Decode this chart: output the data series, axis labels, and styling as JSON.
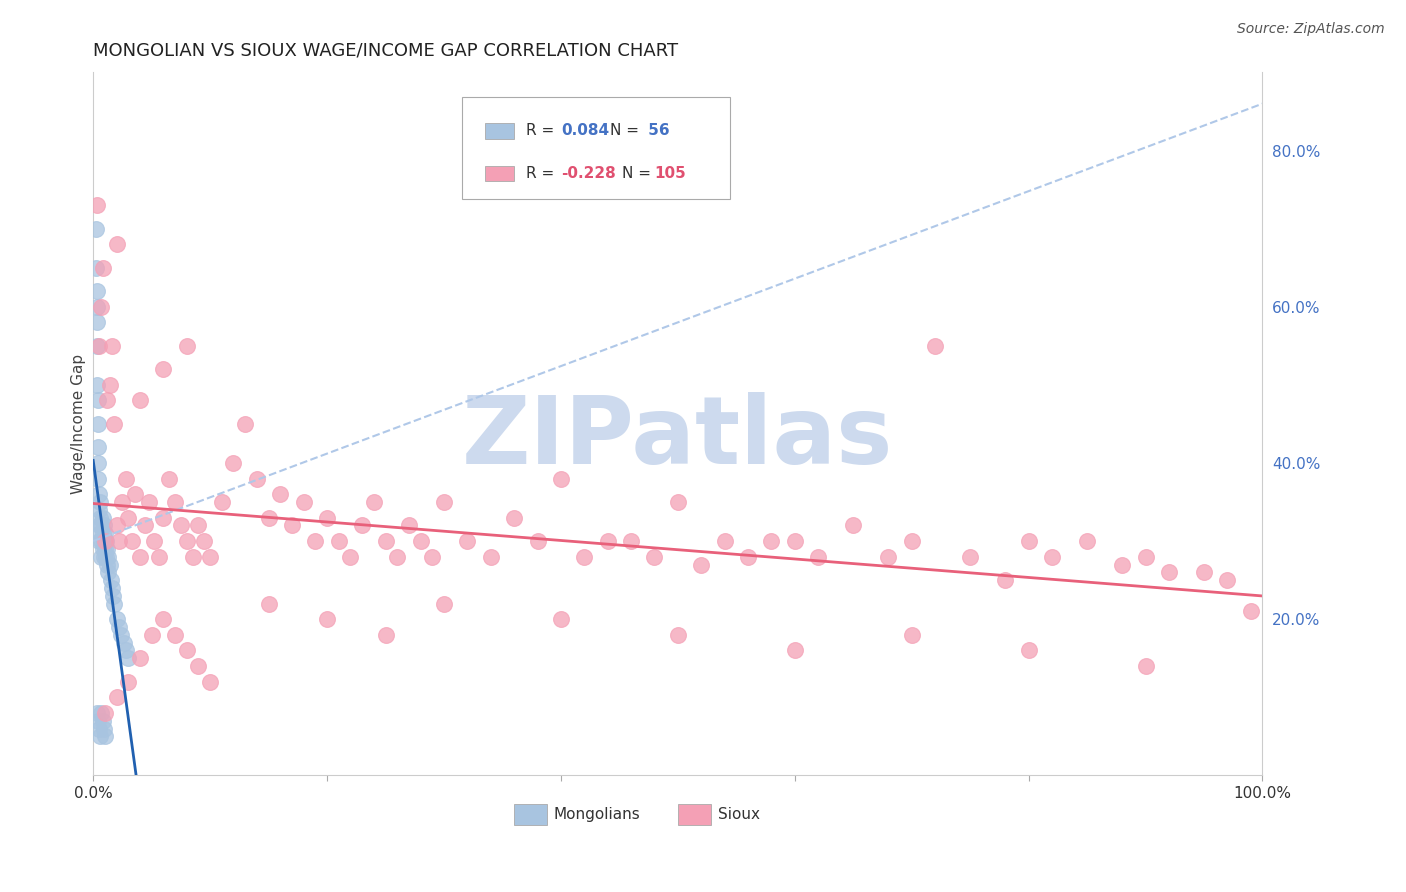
{
  "title": "MONGOLIAN VS SIOUX WAGE/INCOME GAP CORRELATION CHART",
  "source": "Source: ZipAtlas.com",
  "ylabel": "Wage/Income Gap",
  "xlim": [
    0.0,
    1.0
  ],
  "ylim": [
    0.0,
    0.9
  ],
  "mongolian_R": 0.084,
  "mongolian_N": 56,
  "sioux_R": -0.228,
  "sioux_N": 105,
  "mongolian_color": "#a8c4e0",
  "sioux_color": "#f4a0b5",
  "mongolian_trend_color": "#2060b0",
  "sioux_trend_color": "#e8607a",
  "dashed_line_color": "#b0c8e8",
  "watermark_text": "ZIPatlas",
  "watermark_color": "#cddaee",
  "background": "#ffffff",
  "legend_R1": "R = ",
  "legend_V1": "0.084",
  "legend_N1": "N = ",
  "legend_NV1": " 56",
  "legend_R2": "R = ",
  "legend_V2": "-0.228",
  "legend_N2": "N = ",
  "legend_NV2": "105",
  "right_ytick_positions": [
    0.2,
    0.4,
    0.6,
    0.8
  ],
  "right_ytick_labels": [
    "20.0%",
    "40.0%",
    "60.0%",
    "80.0%"
  ],
  "mongolian_x": [
    0.002,
    0.002,
    0.003,
    0.003,
    0.003,
    0.003,
    0.003,
    0.004,
    0.004,
    0.004,
    0.004,
    0.004,
    0.005,
    0.005,
    0.005,
    0.005,
    0.006,
    0.006,
    0.006,
    0.007,
    0.007,
    0.007,
    0.008,
    0.008,
    0.008,
    0.009,
    0.009,
    0.009,
    0.01,
    0.01,
    0.01,
    0.011,
    0.011,
    0.012,
    0.012,
    0.013,
    0.013,
    0.014,
    0.015,
    0.016,
    0.017,
    0.018,
    0.02,
    0.022,
    0.024,
    0.026,
    0.028,
    0.03,
    0.003,
    0.004,
    0.005,
    0.006,
    0.007,
    0.008,
    0.009,
    0.01
  ],
  "mongolian_y": [
    0.7,
    0.65,
    0.6,
    0.62,
    0.58,
    0.55,
    0.5,
    0.48,
    0.45,
    0.42,
    0.4,
    0.38,
    0.36,
    0.34,
    0.32,
    0.3,
    0.35,
    0.33,
    0.31,
    0.32,
    0.3,
    0.28,
    0.33,
    0.31,
    0.29,
    0.32,
    0.3,
    0.28,
    0.31,
    0.3,
    0.29,
    0.3,
    0.28,
    0.29,
    0.27,
    0.28,
    0.26,
    0.27,
    0.25,
    0.24,
    0.23,
    0.22,
    0.2,
    0.19,
    0.18,
    0.17,
    0.16,
    0.15,
    0.08,
    0.07,
    0.06,
    0.05,
    0.08,
    0.07,
    0.06,
    0.05
  ],
  "sioux_x": [
    0.003,
    0.005,
    0.007,
    0.008,
    0.01,
    0.012,
    0.014,
    0.016,
    0.018,
    0.02,
    0.022,
    0.025,
    0.028,
    0.03,
    0.033,
    0.036,
    0.04,
    0.044,
    0.048,
    0.052,
    0.056,
    0.06,
    0.065,
    0.07,
    0.075,
    0.08,
    0.085,
    0.09,
    0.095,
    0.1,
    0.11,
    0.12,
    0.13,
    0.14,
    0.15,
    0.16,
    0.17,
    0.18,
    0.19,
    0.2,
    0.21,
    0.22,
    0.23,
    0.24,
    0.25,
    0.26,
    0.27,
    0.28,
    0.29,
    0.3,
    0.32,
    0.34,
    0.36,
    0.38,
    0.4,
    0.42,
    0.44,
    0.46,
    0.48,
    0.5,
    0.52,
    0.54,
    0.56,
    0.58,
    0.6,
    0.62,
    0.65,
    0.68,
    0.7,
    0.72,
    0.75,
    0.78,
    0.8,
    0.82,
    0.85,
    0.88,
    0.9,
    0.92,
    0.95,
    0.97,
    0.99,
    0.01,
    0.02,
    0.03,
    0.04,
    0.05,
    0.06,
    0.07,
    0.08,
    0.09,
    0.1,
    0.15,
    0.2,
    0.25,
    0.3,
    0.4,
    0.5,
    0.6,
    0.7,
    0.8,
    0.9,
    0.02,
    0.04,
    0.06,
    0.08
  ],
  "sioux_y": [
    0.73,
    0.55,
    0.6,
    0.65,
    0.3,
    0.48,
    0.5,
    0.55,
    0.45,
    0.32,
    0.3,
    0.35,
    0.38,
    0.33,
    0.3,
    0.36,
    0.28,
    0.32,
    0.35,
    0.3,
    0.28,
    0.33,
    0.38,
    0.35,
    0.32,
    0.3,
    0.28,
    0.32,
    0.3,
    0.28,
    0.35,
    0.4,
    0.45,
    0.38,
    0.33,
    0.36,
    0.32,
    0.35,
    0.3,
    0.33,
    0.3,
    0.28,
    0.32,
    0.35,
    0.3,
    0.28,
    0.32,
    0.3,
    0.28,
    0.35,
    0.3,
    0.28,
    0.33,
    0.3,
    0.38,
    0.28,
    0.3,
    0.3,
    0.28,
    0.35,
    0.27,
    0.3,
    0.28,
    0.3,
    0.3,
    0.28,
    0.32,
    0.28,
    0.3,
    0.55,
    0.28,
    0.25,
    0.3,
    0.28,
    0.3,
    0.27,
    0.28,
    0.26,
    0.26,
    0.25,
    0.21,
    0.08,
    0.1,
    0.12,
    0.15,
    0.18,
    0.2,
    0.18,
    0.16,
    0.14,
    0.12,
    0.22,
    0.2,
    0.18,
    0.22,
    0.2,
    0.18,
    0.16,
    0.18,
    0.16,
    0.14,
    0.68,
    0.48,
    0.52,
    0.55
  ]
}
